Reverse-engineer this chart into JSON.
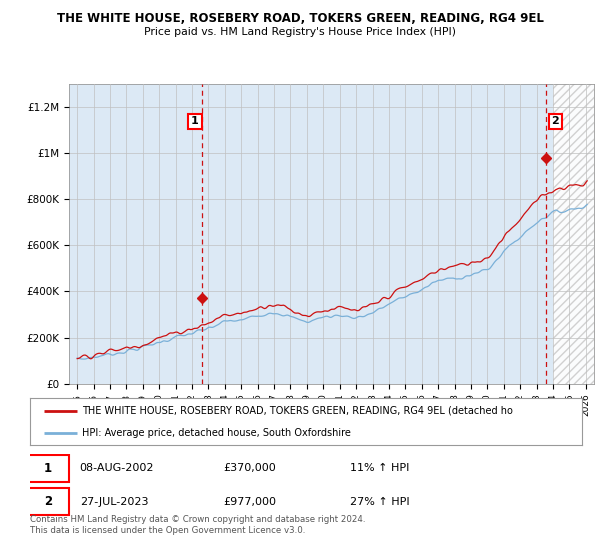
{
  "title": "THE WHITE HOUSE, ROSEBERY ROAD, TOKERS GREEN, READING, RG4 9EL",
  "subtitle": "Price paid vs. HM Land Registry's House Price Index (HPI)",
  "legend_line1": "THE WHITE HOUSE, ROSEBERY ROAD, TOKERS GREEN, READING, RG4 9EL (detached ho",
  "legend_line2": "HPI: Average price, detached house, South Oxfordshire",
  "footer1": "Contains HM Land Registry data © Crown copyright and database right 2024.",
  "footer2": "This data is licensed under the Open Government Licence v3.0.",
  "transaction1_date": "08-AUG-2002",
  "transaction1_price": "£370,000",
  "transaction1_hpi": "11% ↑ HPI",
  "transaction2_date": "27-JUL-2023",
  "transaction2_price": "£977,000",
  "transaction2_hpi": "27% ↑ HPI",
  "hpi_color": "#7ab0d8",
  "price_color": "#cc1111",
  "vline_color": "#cc1111",
  "background_color": "#ffffff",
  "chart_bg_color": "#dce9f5",
  "grid_color": "#c0c0c0",
  "hatch_color": "#cccccc",
  "sale1_year": 2002.58,
  "sale1_price": 370000,
  "sale2_year": 2023.55,
  "sale2_price": 977000,
  "future_start": 2024.0,
  "xlim_min": 1994.5,
  "xlim_max": 2026.5,
  "ylim_min": 0,
  "ylim_max": 1300000,
  "yticks": [
    0,
    200000,
    400000,
    600000,
    800000,
    1000000,
    1200000
  ],
  "ylabels": [
    "£0",
    "£200K",
    "£400K",
    "£600K",
    "£800K",
    "£1M",
    "£1.2M"
  ],
  "xtick_start": 1995,
  "xtick_end": 2026
}
